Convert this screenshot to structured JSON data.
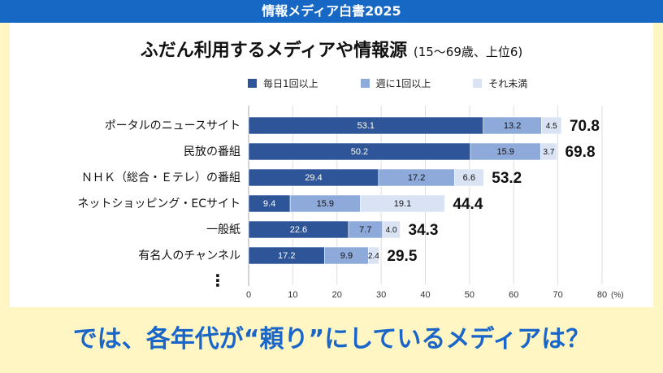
{
  "header": {
    "title": "情報メディア白書2025"
  },
  "bottom_text": "では、各年代が“頼り”にしているメディアは？",
  "colors": {
    "daily": "#2e5597",
    "weekly": "#8eaadb",
    "less": "#dae3f3",
    "header": "#1768c4"
  },
  "chart_data": {
    "type": "bar",
    "orientation": "horizontal-stacked",
    "title": "ふだん利用するメディアや情報源",
    "subtitle": "(15～69歳、上位6)",
    "categories": [
      "ポータルのニュースサイト",
      "民放の番組",
      "ＮＨＫ（総合・Ｅテレ）の番組",
      "ネットショッピング・ECサイト",
      "一般紙",
      "有名人のチャンネル"
    ],
    "series": [
      {
        "name": "毎日1回以上",
        "values": [
          53.1,
          50.2,
          29.4,
          9.4,
          22.6,
          17.2
        ]
      },
      {
        "name": "週に1回以上",
        "values": [
          13.2,
          15.9,
          17.2,
          15.9,
          7.7,
          9.9
        ]
      },
      {
        "name": "それ未満",
        "values": [
          4.5,
          3.7,
          6.6,
          19.1,
          4.0,
          2.4
        ]
      }
    ],
    "totals": [
      70.8,
      69.8,
      53.2,
      44.4,
      34.3,
      29.5
    ],
    "more_indicator": "⋮",
    "xlim": [
      0,
      80
    ],
    "xticks": [
      0,
      10,
      20,
      30,
      40,
      50,
      60,
      70,
      80
    ],
    "xunit": "(%)",
    "grid": true,
    "legend": "top"
  }
}
